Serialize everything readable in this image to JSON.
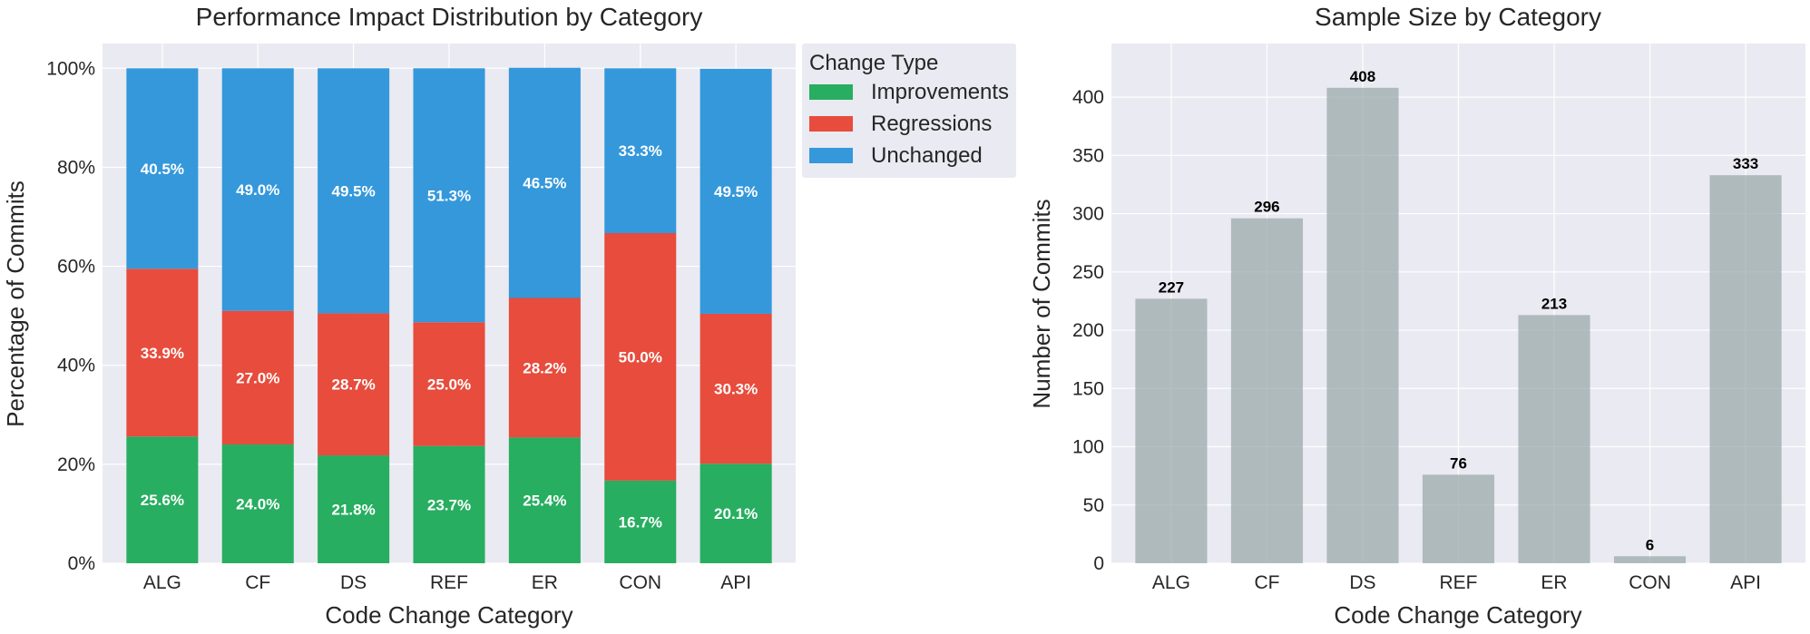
{
  "chart_data": [
    {
      "type": "bar",
      "stacked": true,
      "title": "Performance Impact Distribution by Category",
      "xlabel": "Code Change Category",
      "ylabel": "Percentage of Commits",
      "categories": [
        "ALG",
        "CF",
        "DS",
        "REF",
        "ER",
        "CON",
        "API"
      ],
      "ylim": [
        0,
        105
      ],
      "yticks": [
        0,
        20,
        40,
        60,
        80,
        100
      ],
      "ytick_labels": [
        "0%",
        "20%",
        "40%",
        "60%",
        "80%",
        "100%"
      ],
      "grid": true,
      "legend": {
        "title": "Change Type",
        "placement": "outside-upper-right"
      },
      "series": [
        {
          "name": "Improvements",
          "color": "#27ae60",
          "values": [
            25.6,
            24.0,
            21.8,
            23.7,
            25.4,
            16.7,
            20.1
          ]
        },
        {
          "name": "Regressions",
          "color": "#e74c3c",
          "values": [
            33.9,
            27.0,
            28.7,
            25.0,
            28.2,
            50.0,
            30.3
          ]
        },
        {
          "name": "Unchanged",
          "color": "#3498db",
          "values": [
            40.5,
            49.0,
            49.5,
            51.3,
            46.5,
            33.3,
            49.5
          ]
        }
      ],
      "data_labels": [
        [
          "25.6%",
          "24.0%",
          "21.8%",
          "23.7%",
          "25.4%",
          "16.7%",
          "20.1%"
        ],
        [
          "33.9%",
          "27.0%",
          "28.7%",
          "25.0%",
          "28.2%",
          "50.0%",
          "30.3%"
        ],
        [
          "40.5%",
          "49.0%",
          "49.5%",
          "51.3%",
          "46.5%",
          "33.3%",
          "49.5%"
        ]
      ]
    },
    {
      "type": "bar",
      "title": "Sample Size by Category",
      "xlabel": "Code Change Category",
      "ylabel": "Number of Commits",
      "categories": [
        "ALG",
        "CF",
        "DS",
        "REF",
        "ER",
        "CON",
        "API"
      ],
      "values": [
        227,
        296,
        408,
        76,
        213,
        6,
        333
      ],
      "data_labels": [
        "227",
        "296",
        "408",
        "76",
        "213",
        "6",
        "333"
      ],
      "ylim": [
        0,
        446
      ],
      "yticks": [
        0,
        50,
        100,
        150,
        200,
        250,
        300,
        350,
        400
      ],
      "ytick_labels": [
        "0",
        "50",
        "100",
        "150",
        "200",
        "250",
        "300",
        "350",
        "400"
      ],
      "grid": true,
      "color": "#95a5a6"
    }
  ],
  "colors": {
    "axes_bg": "#eaeaf2",
    "grid": "#ffffff",
    "text": "#262626"
  }
}
